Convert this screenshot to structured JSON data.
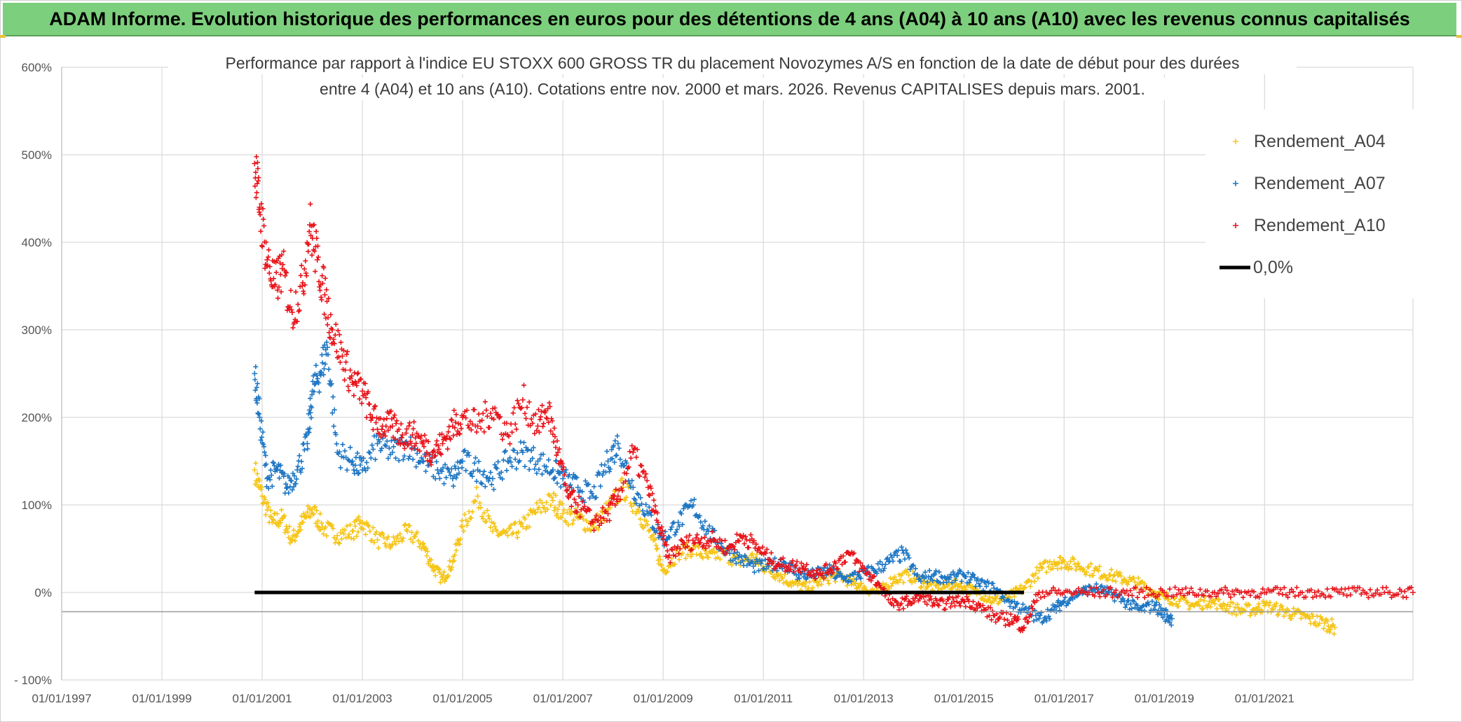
{
  "header": {
    "banner_title": "ADAM Informe. Evolution historique des performances en euros pour des détentions de 4 ans (A04) à 10 ans (A10) avec les revenus connus capitalisés",
    "banner_color": "#7ccf7c"
  },
  "chart_data": {
    "type": "scatter",
    "title": [
      "Performance  par rapport à l'indice EU STOXX 600 GROSS TR  du placement Novozymes A/S en fonction de la date de début pour des durées",
      "entre 4 (A04) et 10 ans (A10). Cotations entre nov. 2000 et mars. 2026. Revenus CAPITALISES depuis mars. 2001."
    ],
    "xlabel": "",
    "ylabel": "",
    "ylim": [
      -100,
      600
    ],
    "xlim": [
      1997.0,
      2023.96
    ],
    "grid": true,
    "legend_position": "top-right",
    "y_ticks": [
      {
        "value": 600,
        "label": "600%"
      },
      {
        "value": 500,
        "label": "500%"
      },
      {
        "value": 400,
        "label": "400%"
      },
      {
        "value": 300,
        "label": "300%"
      },
      {
        "value": 200,
        "label": "200%"
      },
      {
        "value": 100,
        "label": "100%"
      },
      {
        "value": 0,
        "label": "0%"
      },
      {
        "value": -100,
        "label": "- 100%"
      }
    ],
    "x_ticks": [
      {
        "value": 1997,
        "label": "01/01/1997"
      },
      {
        "value": 1999,
        "label": "01/01/1999"
      },
      {
        "value": 2001,
        "label": "01/01/2001"
      },
      {
        "value": 2003,
        "label": "01/01/2003"
      },
      {
        "value": 2005,
        "label": "01/01/2005"
      },
      {
        "value": 2007,
        "label": "01/01/2007"
      },
      {
        "value": 2009,
        "label": "01/01/2009"
      },
      {
        "value": 2011,
        "label": "01/01/2011"
      },
      {
        "value": 2013,
        "label": "01/01/2013"
      },
      {
        "value": 2015,
        "label": "01/01/2015"
      },
      {
        "value": 2017,
        "label": "01/01/2017"
      },
      {
        "value": 2019,
        "label": "01/01/2019"
      },
      {
        "value": 2021,
        "label": "01/01/2021"
      }
    ],
    "series": [
      {
        "name": "Rendement_A04",
        "color": "#f5c518",
        "marker": "+",
        "x": [
          2000.85,
          2001.0,
          2001.2,
          2001.4,
          2001.6,
          2001.8,
          2002.0,
          2002.2,
          2002.5,
          2002.8,
          2003.0,
          2003.3,
          2003.6,
          2003.9,
          2004.2,
          2004.4,
          2004.6,
          2004.8,
          2005.0,
          2005.3,
          2005.6,
          2005.9,
          2006.2,
          2006.5,
          2006.8,
          2007.0,
          2007.3,
          2007.6,
          2007.9,
          2008.2,
          2008.5,
          2008.8,
          2009.0,
          2009.3,
          2009.6,
          2009.9,
          2010.2,
          2010.5,
          2010.8,
          2011.0,
          2011.3,
          2011.6,
          2011.9,
          2012.2,
          2012.5,
          2012.8,
          2013.0,
          2013.3,
          2013.6,
          2013.9,
          2014.2,
          2014.5,
          2014.8,
          2015.0,
          2015.3,
          2015.6,
          2015.9,
          2016.2,
          2016.5,
          2016.8,
          2017.0,
          2017.3,
          2017.6,
          2017.9,
          2018.2,
          2018.5,
          2018.8,
          2019.0,
          2019.3,
          2019.6,
          2019.9,
          2020.2,
          2020.5,
          2020.8,
          2021.0,
          2021.3,
          2021.6,
          2021.9,
          2022.2,
          2022.4
        ],
        "y": [
          140,
          110,
          80,
          85,
          60,
          80,
          95,
          75,
          65,
          70,
          80,
          60,
          55,
          70,
          55,
          30,
          15,
          35,
          75,
          110,
          70,
          65,
          75,
          95,
          105,
          90,
          85,
          75,
          95,
          120,
          95,
          60,
          25,
          45,
          50,
          40,
          45,
          35,
          40,
          30,
          20,
          10,
          5,
          15,
          20,
          10,
          5,
          0,
          15,
          20,
          10,
          5,
          10,
          5,
          0,
          -10,
          -5,
          5,
          25,
          35,
          35,
          30,
          25,
          20,
          15,
          10,
          0,
          -5,
          -10,
          -15,
          -10,
          -15,
          -20,
          -20,
          -15,
          -20,
          -25,
          -30,
          -35,
          -40
        ]
      },
      {
        "name": "Rendement_A07",
        "color": "#1f77c4",
        "marker": "+",
        "x": [
          2000.85,
          2000.95,
          2001.1,
          2001.3,
          2001.5,
          2001.7,
          2001.9,
          2002.0,
          2002.15,
          2002.3,
          2002.5,
          2002.8,
          2003.0,
          2003.3,
          2003.6,
          2003.9,
          2004.2,
          2004.5,
          2004.8,
          2005.0,
          2005.3,
          2005.6,
          2005.9,
          2006.2,
          2006.5,
          2006.8,
          2007.0,
          2007.3,
          2007.6,
          2007.9,
          2008.1,
          2008.4,
          2008.7,
          2009.0,
          2009.3,
          2009.6,
          2009.9,
          2010.2,
          2010.5,
          2010.8,
          2011.1,
          2011.4,
          2011.7,
          2012.0,
          2012.3,
          2012.6,
          2012.9,
          2013.2,
          2013.5,
          2013.8,
          2014.1,
          2014.4,
          2014.7,
          2015.0,
          2015.3,
          2015.6,
          2015.9,
          2016.2,
          2016.5,
          2016.8,
          2017.0,
          2017.3,
          2017.6,
          2017.9,
          2018.2,
          2018.5,
          2018.8,
          2019.0,
          2019.15
        ],
        "y": [
          250,
          200,
          130,
          140,
          120,
          140,
          170,
          230,
          250,
          280,
          160,
          150,
          140,
          170,
          160,
          170,
          150,
          140,
          130,
          150,
          140,
          130,
          150,
          160,
          150,
          140,
          130,
          120,
          110,
          150,
          170,
          120,
          90,
          60,
          80,
          100,
          70,
          50,
          40,
          30,
          30,
          35,
          20,
          20,
          25,
          15,
          20,
          25,
          35,
          45,
          15,
          20,
          15,
          20,
          10,
          5,
          -10,
          -20,
          -30,
          -20,
          -10,
          0,
          5,
          0,
          -10,
          -20,
          -15,
          -25,
          -30
        ]
      },
      {
        "name": "Rendement_A10",
        "color": "#e8151b",
        "marker": "+",
        "x": [
          2000.85,
          2000.95,
          2001.1,
          2001.25,
          2001.4,
          2001.6,
          2001.8,
          2001.95,
          2002.1,
          2002.25,
          2002.4,
          2002.6,
          2002.8,
          2003.0,
          2003.2,
          2003.4,
          2003.6,
          2003.8,
          2004.0,
          2004.2,
          2004.4,
          2004.6,
          2004.8,
          2005.0,
          2005.3,
          2005.6,
          2005.9,
          2006.2,
          2006.5,
          2006.7,
          2006.9,
          2007.1,
          2007.3,
          2007.6,
          2007.9,
          2008.1,
          2008.4,
          2008.7,
          2008.9,
          2009.1,
          2009.4,
          2009.7,
          2010.0,
          2010.3,
          2010.6,
          2010.9,
          2011.2,
          2011.5,
          2011.8,
          2012.1,
          2012.4,
          2012.7,
          2013.0,
          2013.3,
          2013.6,
          2013.9,
          2014.2,
          2014.5,
          2014.8,
          2015.1,
          2015.4,
          2015.7,
          2016.0,
          2016.2,
          2016.5,
          2017.0,
          2017.5,
          2018.0,
          2018.5,
          2019.0,
          2019.5,
          2020.0,
          2020.5,
          2021.0,
          2021.5,
          2022.0,
          2022.5,
          2023.0,
          2023.5,
          2023.96
        ],
        "y": [
          490,
          440,
          380,
          350,
          370,
          320,
          350,
          420,
          380,
          340,
          300,
          270,
          240,
          230,
          200,
          190,
          190,
          180,
          180,
          170,
          160,
          170,
          190,
          200,
          190,
          210,
          180,
          220,
          190,
          210,
          160,
          110,
          100,
          80,
          90,
          110,
          160,
          120,
          80,
          40,
          55,
          60,
          60,
          50,
          65,
          50,
          35,
          30,
          30,
          20,
          30,
          45,
          25,
          10,
          -15,
          -10,
          -5,
          -15,
          -10,
          -10,
          -20,
          -30,
          -30,
          -40,
          0,
          0,
          0,
          0,
          0,
          0,
          0,
          0,
          0,
          0,
          0,
          0,
          0,
          0,
          0,
          0
        ]
      },
      {
        "name": "0,0%",
        "color": "#000000",
        "marker": "line",
        "x": [
          2000.85,
          2016.2
        ],
        "y": [
          0,
          0
        ]
      }
    ]
  }
}
